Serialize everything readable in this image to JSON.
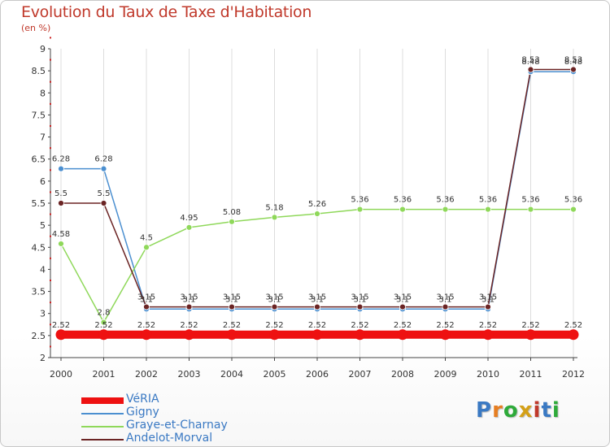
{
  "header": {
    "title": "Evolution du Taux de Taxe d'Habitation",
    "subtitle": "(en %)"
  },
  "logo": {
    "text": "Proxiti",
    "letters": [
      "P",
      "r",
      "o",
      "x",
      "i",
      "t",
      "i"
    ],
    "colors": [
      "#3a79c3",
      "#e67e22",
      "#2eaa3a",
      "#d4a017",
      "#c0392b",
      "#3a79c3",
      "#2eaa3a"
    ]
  },
  "legend": [
    {
      "label": "VéRIA",
      "color": "#ee1111",
      "width": "thick"
    },
    {
      "label": "Gigny",
      "color": "#4b8fd0",
      "width": "thin"
    },
    {
      "label": "Graye-et-Charnay",
      "color": "#8fd85a",
      "width": "thin"
    },
    {
      "label": "Andelot-Morval",
      "color": "#6b2424",
      "width": "thin"
    }
  ],
  "chart_data": {
    "type": "line",
    "x": [
      "2000",
      "2001",
      "2002",
      "2003",
      "2004",
      "2005",
      "2006",
      "2007",
      "2008",
      "2009",
      "2010",
      "2011",
      "2012"
    ],
    "ylim": [
      2,
      9
    ],
    "yticks": [
      "2",
      "2.5",
      "3",
      "3.5",
      "4",
      "4.5",
      "5",
      "5.5",
      "6",
      "6.5",
      "7",
      "7.5",
      "8",
      "8.5",
      "9"
    ],
    "grid": "vertical",
    "series": [
      {
        "name": "Gigny",
        "color": "#4b8fd0",
        "values": [
          6.28,
          6.28,
          3.1,
          3.1,
          3.1,
          3.1,
          3.1,
          3.1,
          3.1,
          3.1,
          3.1,
          8.48,
          8.48
        ],
        "labels": [
          "6.28",
          "6.28",
          "3.1",
          "3.1",
          "3.1",
          "3.1",
          "3.1",
          "3.1",
          "3.1",
          "3.1",
          "3.1",
          "8.48",
          "8.48"
        ]
      },
      {
        "name": "Graye-et-Charnay",
        "color": "#8fd85a",
        "values": [
          4.58,
          2.8,
          4.5,
          4.95,
          5.08,
          5.18,
          5.26,
          5.36,
          5.36,
          5.36,
          5.36,
          5.36,
          5.36
        ],
        "labels": [
          "4.58",
          "2.8",
          "4.5",
          "4.95",
          "5.08",
          "5.18",
          "5.26",
          "5.36",
          "5.36",
          "5.36",
          "5.36",
          "5.36",
          "5.36"
        ]
      },
      {
        "name": "Andelot-Morval",
        "color": "#6b2424",
        "values": [
          5.5,
          5.5,
          3.15,
          3.15,
          3.15,
          3.15,
          3.15,
          3.15,
          3.15,
          3.15,
          3.15,
          8.53,
          8.53
        ],
        "labels": [
          "5.5",
          "5.5",
          "3.15",
          "3.15",
          "3.15",
          "3.15",
          "3.15",
          "3.15",
          "3.15",
          "3.15",
          "3.15",
          "8.53",
          "8.53"
        ]
      },
      {
        "name": "VéRIA",
        "color": "#ee1111",
        "values": [
          2.52,
          2.52,
          2.52,
          2.52,
          2.52,
          2.52,
          2.52,
          2.52,
          2.52,
          2.52,
          2.52,
          2.52,
          2.52
        ],
        "labels": [
          "2.52",
          "2.52",
          "2.52",
          "2.52",
          "2.52",
          "2.52",
          "2.52",
          "2.52",
          "2.52",
          "2.52",
          "2.52",
          "2.52",
          "2.52"
        ]
      }
    ]
  }
}
